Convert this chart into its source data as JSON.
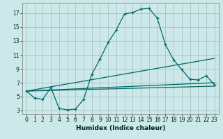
{
  "title": "",
  "xlabel": "Humidex (Indice chaleur)",
  "ylabel": "",
  "bg_color": "#cce8e8",
  "grid_color": "#aacaca",
  "line_color": "#006868",
  "xlim": [
    -0.5,
    23.5
  ],
  "ylim": [
    2.5,
    18.5
  ],
  "xticks": [
    0,
    1,
    2,
    3,
    4,
    5,
    6,
    7,
    8,
    9,
    10,
    11,
    12,
    13,
    14,
    15,
    16,
    17,
    18,
    19,
    20,
    21,
    22,
    23
  ],
  "yticks": [
    3,
    5,
    7,
    9,
    11,
    13,
    15,
    17
  ],
  "series1_x": [
    0,
    1,
    2,
    3,
    4,
    5,
    6,
    7,
    8,
    9,
    10,
    11,
    12,
    13,
    14,
    15,
    16,
    17,
    18,
    19,
    20,
    21,
    22,
    23
  ],
  "series1_y": [
    5.8,
    4.8,
    4.6,
    6.3,
    3.3,
    3.1,
    3.2,
    4.6,
    8.2,
    10.4,
    12.8,
    14.6,
    16.9,
    17.1,
    17.6,
    17.7,
    16.3,
    12.5,
    10.3,
    8.9,
    7.5,
    7.4,
    8.0,
    6.7
  ],
  "series2_x": [
    0,
    23
  ],
  "series2_y": [
    5.8,
    10.5
  ],
  "series3_x": [
    0,
    23
  ],
  "series3_y": [
    5.8,
    7.0
  ],
  "series4_x": [
    0,
    23
  ],
  "series4_y": [
    5.8,
    6.5
  ]
}
